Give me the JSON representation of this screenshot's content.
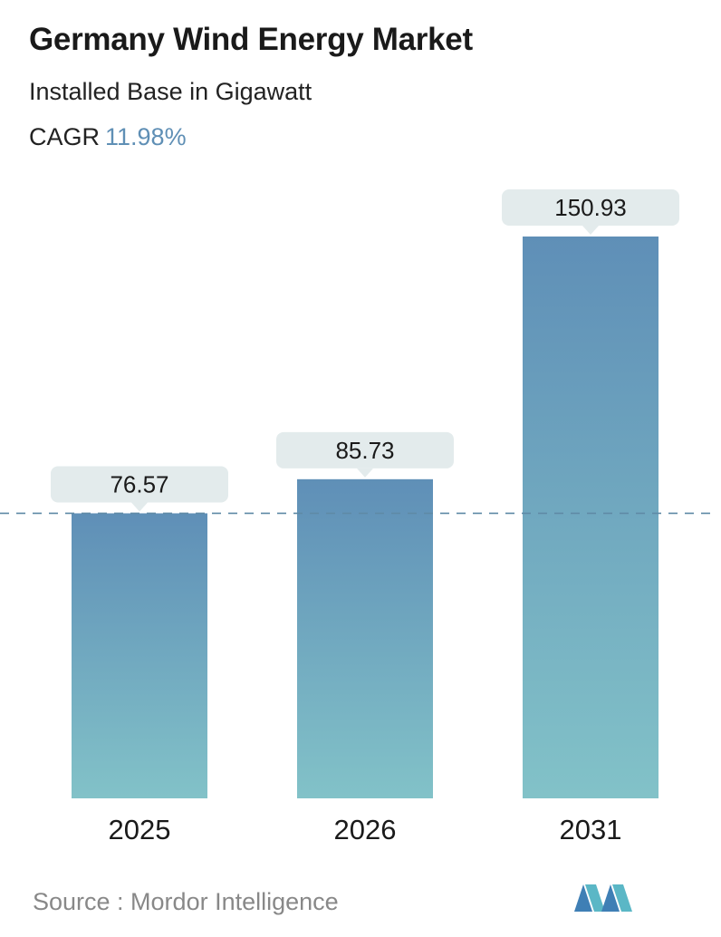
{
  "header": {
    "title": "Germany Wind Energy Market",
    "subtitle": "Installed Base in Gigawatt",
    "cagr_label": "CAGR",
    "cagr_value": "11.98%"
  },
  "chart_data": {
    "type": "bar",
    "categories": [
      "2025",
      "2026",
      "2031"
    ],
    "values": [
      76.57,
      85.73,
      150.93
    ],
    "value_labels": [
      "76.57",
      "85.73",
      "150.93"
    ],
    "title": "Germany Wind Energy Market",
    "ylabel": "Installed Base in Gigawatt",
    "ylim": [
      0,
      150.93
    ],
    "reference_line": 76.57,
    "grid": false,
    "legend": "none",
    "colors": {
      "bar_top": "#5f8fb7",
      "bar_bottom": "#82c2c8",
      "label_bg": "#e3ebec",
      "reference_line": "#5f8aa6"
    }
  },
  "footer": {
    "source": "Source :  Mordor Intelligence",
    "logo_icon": "mordor-intelligence-logo-icon"
  }
}
